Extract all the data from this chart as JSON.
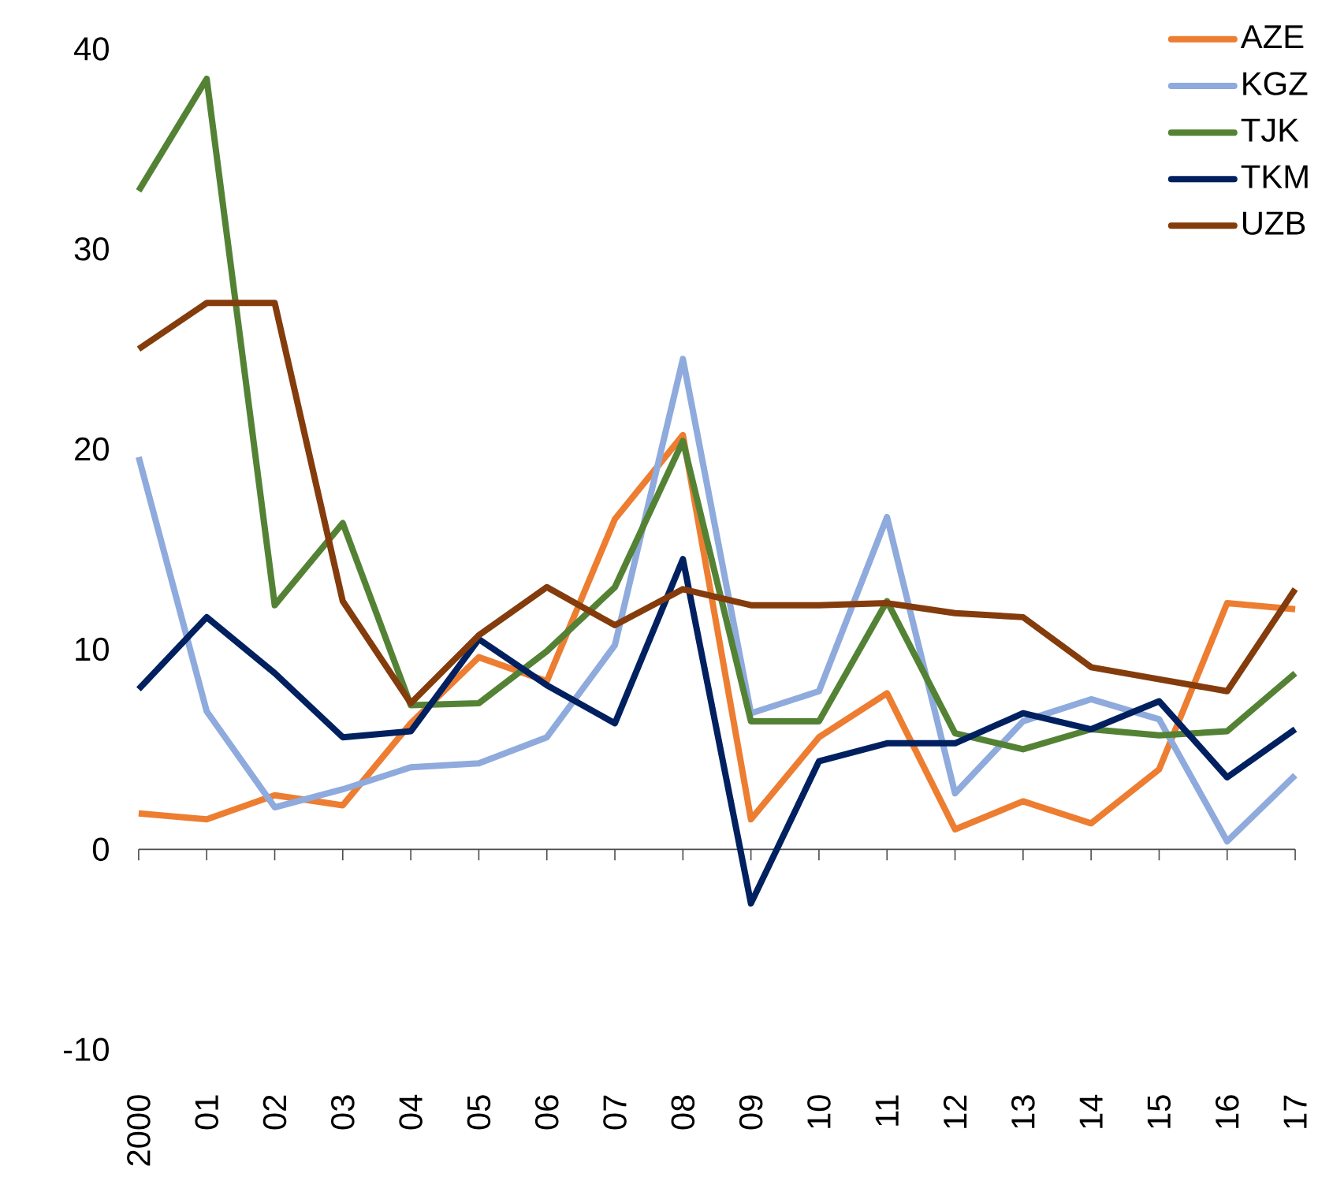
{
  "chart_data": {
    "type": "line",
    "categories": [
      "2000",
      "01",
      "02",
      "03",
      "04",
      "05",
      "06",
      "07",
      "08",
      "09",
      "10",
      "11",
      "12",
      "13",
      "14",
      "15",
      "16",
      "17"
    ],
    "series": [
      {
        "name": "AZE",
        "color": "#ed7d31",
        "values": [
          1.8,
          1.5,
          2.7,
          2.2,
          6.3,
          9.6,
          8.4,
          16.5,
          20.7,
          1.5,
          5.6,
          7.8,
          1.0,
          2.4,
          1.3,
          4.0,
          12.3,
          12.0
        ]
      },
      {
        "name": "KGZ",
        "color": "#8faadc",
        "values": [
          19.6,
          6.9,
          2.1,
          3.0,
          4.1,
          4.3,
          5.6,
          10.2,
          24.5,
          6.8,
          7.9,
          16.6,
          2.8,
          6.4,
          7.5,
          6.5,
          0.4,
          3.7
        ]
      },
      {
        "name": "TJK",
        "color": "#548235",
        "values": [
          32.9,
          38.5,
          12.2,
          16.3,
          7.2,
          7.3,
          9.9,
          13.1,
          20.4,
          6.4,
          6.4,
          12.4,
          5.8,
          5.0,
          6.0,
          5.7,
          5.9,
          8.8
        ]
      },
      {
        "name": "TKM",
        "color": "#002060",
        "values": [
          8.0,
          11.6,
          8.8,
          5.6,
          5.9,
          10.5,
          8.2,
          6.3,
          14.5,
          -2.7,
          4.4,
          5.3,
          5.3,
          6.8,
          6.0,
          7.4,
          3.6,
          6.0
        ]
      },
      {
        "name": "UZB",
        "color": "#843c0c",
        "values": [
          25.0,
          27.3,
          27.3,
          12.4,
          7.3,
          10.7,
          13.1,
          11.2,
          13.0,
          12.2,
          12.2,
          12.3,
          11.8,
          11.6,
          9.1,
          8.5,
          7.9,
          13.0
        ]
      }
    ],
    "ylim": [
      -10,
      40
    ],
    "yticks": [
      -10,
      0,
      10,
      20,
      30,
      40
    ],
    "legend": "top right",
    "marker": "none",
    "line_style": "solid"
  }
}
